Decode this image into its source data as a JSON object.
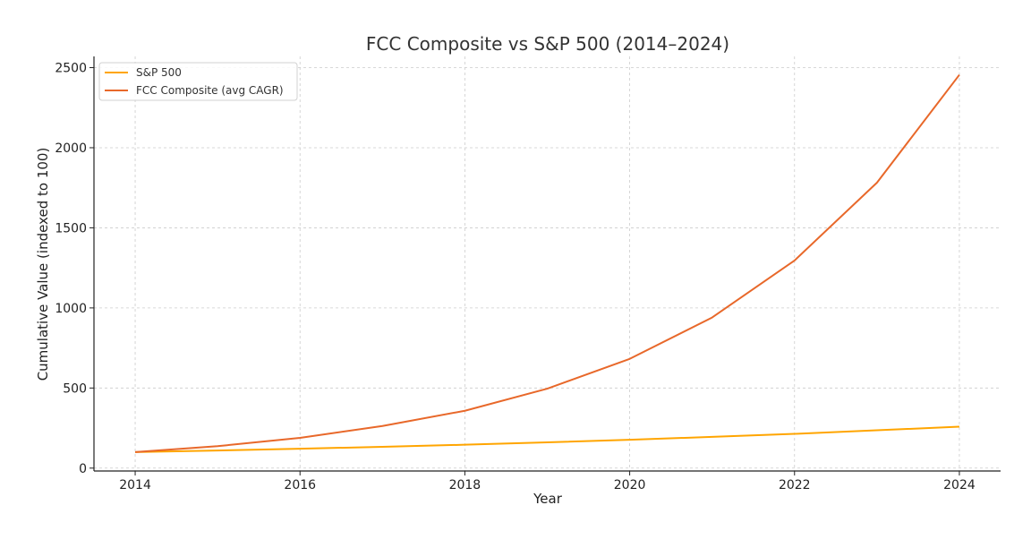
{
  "chart_data": {
    "type": "line",
    "title": "FCC Composite vs S&P 500 (2014–2024)",
    "xlabel": "Year",
    "ylabel": "Cumulative Value (indexed to 100)",
    "x": [
      2014,
      2015,
      2016,
      2017,
      2018,
      2019,
      2020,
      2021,
      2022,
      2023,
      2024
    ],
    "xlim": [
      2013.5,
      2024.5
    ],
    "ylim": [
      -18,
      2570
    ],
    "x_ticks": [
      2014,
      2016,
      2018,
      2020,
      2022,
      2024
    ],
    "y_ticks": [
      0,
      500,
      1000,
      1500,
      2000,
      2500
    ],
    "grid": true,
    "legend_position": "top-left",
    "series": [
      {
        "name": "S&P 500",
        "color": "#FFA500",
        "values": [
          100,
          110,
          121,
          133,
          146,
          161,
          177,
          195,
          214,
          236,
          259
        ]
      },
      {
        "name": "FCC Composite (avg CAGR)",
        "color": "#E8682A",
        "values": [
          100,
          137,
          189,
          263,
          358,
          496,
          682,
          940,
          1296,
          1782,
          2455
        ]
      }
    ]
  }
}
